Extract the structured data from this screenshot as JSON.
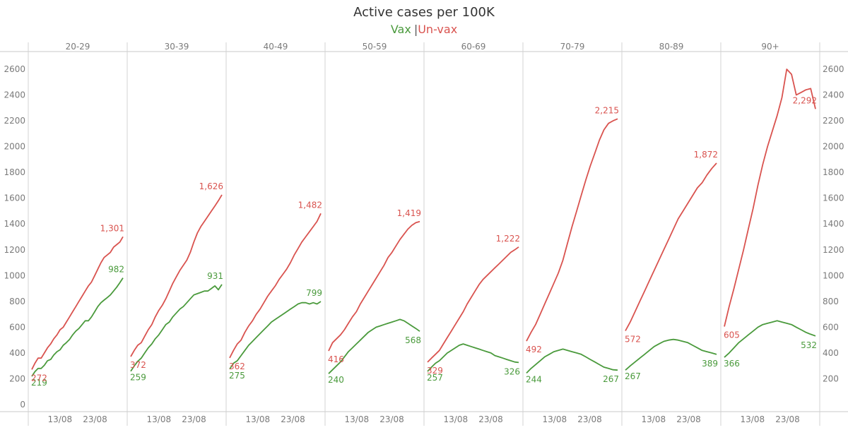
{
  "chart_data": {
    "type": "line",
    "title": "Active cases per 100K",
    "legend": {
      "position": "top-center",
      "items": [
        {
          "label": "Vax",
          "color": "#4a9a3c"
        },
        {
          "label": "Un-vax",
          "color": "#d9534f"
        }
      ],
      "separator": "|"
    },
    "yaxis": {
      "min": 0,
      "max": 2700,
      "ticks": [
        0,
        200,
        400,
        600,
        800,
        1000,
        1200,
        1400,
        1600,
        1800,
        2000,
        2200,
        2400,
        2600
      ]
    },
    "grid": false,
    "xaxis": {
      "ticks": [
        "13/08",
        "23/08"
      ]
    },
    "panels": [
      {
        "age": "20-29",
        "series": [
          {
            "name": "Vax",
            "start_label": "219",
            "end_label": "982",
            "values": [
              219,
              255,
              280,
              280,
              305,
              340,
              350,
              385,
              410,
              425,
              460,
              480,
              505,
              540,
              570,
              590,
              620,
              650,
              650,
              680,
              720,
              760,
              790,
              810,
              830,
              850,
              880,
              910,
              945,
              982
            ]
          },
          {
            "name": "Un-vax",
            "start_label": "272",
            "end_label": "1,301",
            "values": [
              272,
              320,
              360,
              360,
              400,
              440,
              470,
              510,
              540,
              580,
              600,
              640,
              680,
              720,
              760,
              800,
              840,
              880,
              920,
              950,
              1000,
              1050,
              1100,
              1140,
              1160,
              1180,
              1220,
              1240,
              1260,
              1301
            ]
          }
        ]
      },
      {
        "age": "30-39",
        "series": [
          {
            "name": "Vax",
            "start_label": "259",
            "end_label": "931",
            "values": [
              259,
              300,
              335,
              360,
              400,
              440,
              470,
              510,
              540,
              580,
              620,
              640,
              680,
              710,
              740,
              760,
              790,
              820,
              850,
              860,
              870,
              880,
              880,
              900,
              920,
              890,
              931
            ]
          },
          {
            "name": "Un-vax",
            "start_label": "372",
            "end_label": "1,626",
            "values": [
              372,
              420,
              460,
              480,
              530,
              580,
              620,
              680,
              730,
              770,
              820,
              880,
              940,
              990,
              1040,
              1080,
              1120,
              1180,
              1260,
              1330,
              1380,
              1420,
              1460,
              1500,
              1540,
              1580,
              1626
            ]
          }
        ]
      },
      {
        "age": "40-49",
        "series": [
          {
            "name": "Vax",
            "start_label": "275",
            "end_label": "799",
            "values": [
              275,
              320,
              340,
              380,
              420,
              460,
              490,
              520,
              550,
              580,
              610,
              640,
              660,
              680,
              700,
              720,
              740,
              760,
              780,
              790,
              790,
              780,
              790,
              780,
              799
            ]
          },
          {
            "name": "Un-vax",
            "start_label": "362",
            "end_label": "1,482",
            "values": [
              362,
              420,
              470,
              500,
              560,
              610,
              650,
              700,
              740,
              790,
              840,
              880,
              920,
              970,
              1010,
              1050,
              1100,
              1160,
              1210,
              1260,
              1300,
              1340,
              1380,
              1420,
              1482
            ]
          }
        ]
      },
      {
        "age": "50-59",
        "series": [
          {
            "name": "Vax",
            "start_label": "240",
            "end_label": "568",
            "values": [
              240,
              270,
              300,
              330,
              370,
              410,
              440,
              470,
              500,
              530,
              560,
              580,
              600,
              610,
              620,
              630,
              640,
              650,
              660,
              650,
              630,
              610,
              590,
              568
            ]
          },
          {
            "name": "Un-vax",
            "start_label": "416",
            "end_label": "1,419",
            "values": [
              416,
              480,
              510,
              540,
              580,
              630,
              680,
              720,
              780,
              830,
              880,
              930,
              980,
              1030,
              1080,
              1140,
              1180,
              1230,
              1280,
              1320,
              1360,
              1390,
              1410,
              1419
            ]
          }
        ]
      },
      {
        "age": "60-69",
        "series": [
          {
            "name": "Vax",
            "start_label": "257",
            "end_label": "326",
            "values": [
              257,
              290,
              320,
              340,
              370,
              400,
              420,
              440,
              460,
              470,
              460,
              450,
              440,
              430,
              420,
              410,
              400,
              380,
              370,
              360,
              350,
              340,
              330,
              326
            ]
          },
          {
            "name": "Un-vax",
            "start_label": "329",
            "end_label": "1,222",
            "values": [
              329,
              360,
              390,
              420,
              470,
              520,
              570,
              620,
              670,
              720,
              780,
              830,
              880,
              930,
              970,
              1000,
              1030,
              1060,
              1090,
              1120,
              1150,
              1180,
              1200,
              1222
            ]
          }
        ]
      },
      {
        "age": "70-79",
        "series": [
          {
            "name": "Vax",
            "start_label": "244",
            "end_label": "267",
            "values": [
              244,
              280,
              310,
              340,
              370,
              390,
              410,
              420,
              430,
              420,
              410,
              400,
              390,
              370,
              350,
              330,
              310,
              290,
              280,
              270,
              267
            ]
          },
          {
            "name": "Un-vax",
            "start_label": "492",
            "end_label": "2,215",
            "values": [
              492,
              560,
              620,
              700,
              780,
              860,
              940,
              1020,
              1120,
              1250,
              1380,
              1500,
              1620,
              1740,
              1850,
              1950,
              2050,
              2130,
              2180,
              2200,
              2215
            ]
          }
        ]
      },
      {
        "age": "80-89",
        "series": [
          {
            "name": "Vax",
            "start_label": "267",
            "end_label": "389",
            "values": [
              267,
              300,
              330,
              360,
              390,
              420,
              450,
              470,
              490,
              500,
              505,
              500,
              490,
              480,
              460,
              440,
              420,
              410,
              400,
              389
            ]
          },
          {
            "name": "Un-vax",
            "start_label": "572",
            "end_label": "1,872",
            "values": [
              572,
              640,
              720,
              800,
              880,
              960,
              1040,
              1120,
              1200,
              1280,
              1360,
              1440,
              1500,
              1560,
              1620,
              1680,
              1720,
              1780,
              1830,
              1872
            ]
          }
        ]
      },
      {
        "age": "90+",
        "series": [
          {
            "name": "Vax",
            "start_label": "366",
            "end_label": "532",
            "values": [
              366,
              400,
              440,
              480,
              510,
              540,
              570,
              600,
              620,
              630,
              640,
              650,
              640,
              630,
              620,
              600,
              580,
              560,
              545,
              532
            ]
          },
          {
            "name": "Un-vax",
            "start_label": "605",
            "end_label": "2,292",
            "values": [
              605,
              760,
              900,
              1050,
              1200,
              1360,
              1520,
              1700,
              1860,
              2000,
              2120,
              2240,
              2380,
              2600,
              2560,
              2400,
              2420,
              2440,
              2450,
              2292
            ]
          }
        ]
      }
    ]
  }
}
